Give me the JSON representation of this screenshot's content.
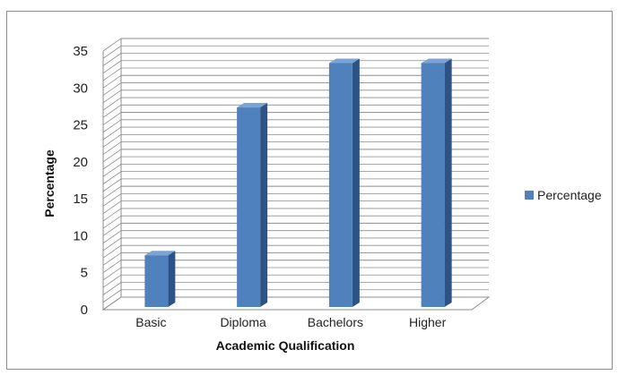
{
  "chart_data": {
    "type": "bar",
    "view": "3d",
    "categories": [
      "Basic",
      "Diploma",
      "Bachelors",
      "Higher"
    ],
    "series": [
      {
        "name": "Percentage",
        "values": [
          7,
          27,
          33,
          33
        ]
      }
    ],
    "xlabel": "Academic Qualification",
    "ylabel": "Percentage",
    "ylim": [
      0,
      35
    ],
    "yticks": [
      0,
      5,
      10,
      15,
      20,
      25,
      30,
      35
    ],
    "grid": true,
    "legend": "right"
  },
  "colors": {
    "bar_front": "#4f81bd",
    "bar_side": "#2d5286",
    "bar_top": "#7da2d4",
    "grid": "#8c8c8c"
  }
}
